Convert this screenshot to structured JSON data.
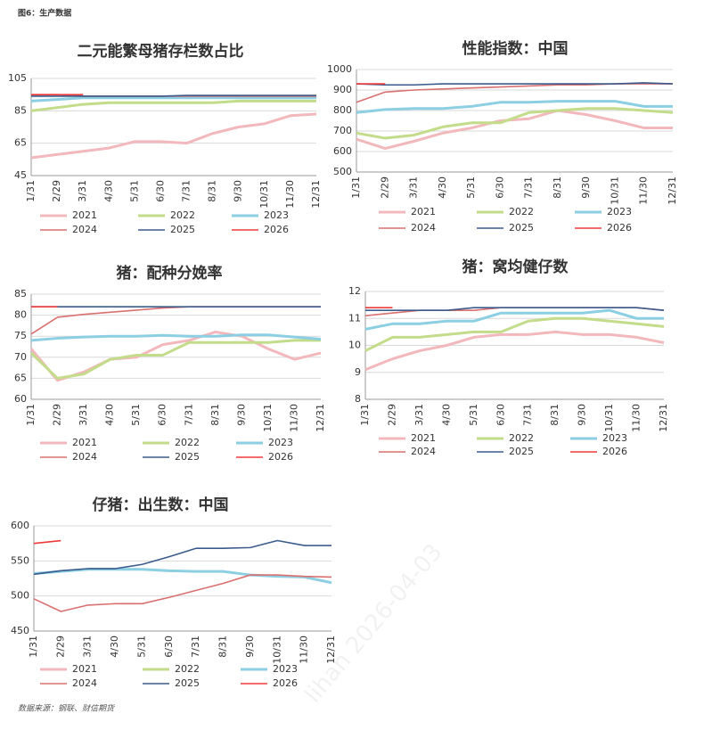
{
  "header": "图6：生产数据",
  "footer": "数据来源：钢联、财信期货",
  "watermark": "lihan 2026-04-03",
  "chart_data": [
    {
      "type": "line",
      "title": "二元能繁母猪存栏数占比",
      "categories": [
        "1/31",
        "2/29",
        "3/31",
        "4/30",
        "5/31",
        "6/30",
        "7/31",
        "8/31",
        "9/30",
        "10/31",
        "11/30",
        "12/31"
      ],
      "ylim": [
        45,
        105
      ],
      "yticks": [
        45,
        65,
        85,
        105
      ],
      "grid": true,
      "series": [
        {
          "name": "2021",
          "color": "#f2b8bc",
          "values": [
            56,
            58,
            60,
            62,
            66,
            66,
            65,
            71,
            75,
            77,
            82,
            83
          ]
        },
        {
          "name": "2022",
          "color": "#c3dc8a",
          "values": [
            85,
            87,
            89,
            90,
            90,
            90,
            90,
            90,
            91,
            91,
            91,
            91
          ]
        },
        {
          "name": "2023",
          "color": "#8ccfe3",
          "values": [
            91,
            92,
            93,
            93,
            93,
            93,
            93,
            93,
            93,
            93,
            93,
            93
          ]
        },
        {
          "name": "2024",
          "color": "#d9706f",
          "values": [
            95,
            95,
            94,
            94,
            94,
            94,
            94,
            94,
            94,
            94,
            94,
            94
          ]
        },
        {
          "name": "2025",
          "color": "#3b5b8c",
          "values": [
            94,
            94,
            94,
            94,
            94,
            94,
            94.5,
            94.5,
            94.5,
            94.5,
            94.5,
            94.5
          ]
        },
        {
          "name": "2026",
          "color": "#ef3a3a",
          "values": [
            95,
            95,
            95,
            null,
            null,
            null,
            null,
            null,
            null,
            null,
            null,
            null
          ]
        }
      ]
    },
    {
      "type": "line",
      "title": "性能指数：中国",
      "categories": [
        "1/31",
        "2/29",
        "3/31",
        "4/30",
        "5/31",
        "6/30",
        "7/31",
        "8/31",
        "9/30",
        "10/31",
        "11/30",
        "12/31"
      ],
      "ylim": [
        500,
        1000
      ],
      "yticks": [
        500,
        600,
        700,
        800,
        900,
        1000
      ],
      "grid": true,
      "series": [
        {
          "name": "2021",
          "color": "#f2b8bc",
          "values": [
            660,
            615,
            650,
            690,
            715,
            750,
            760,
            800,
            780,
            750,
            715,
            715
          ]
        },
        {
          "name": "2022",
          "color": "#c3dc8a",
          "values": [
            690,
            665,
            680,
            720,
            740,
            740,
            790,
            800,
            810,
            810,
            800,
            790
          ]
        },
        {
          "name": "2023",
          "color": "#8ccfe3",
          "values": [
            790,
            805,
            810,
            810,
            820,
            840,
            840,
            845,
            845,
            845,
            820,
            820
          ]
        },
        {
          "name": "2024",
          "color": "#d9706f",
          "values": [
            840,
            890,
            900,
            905,
            910,
            915,
            920,
            925,
            925,
            930,
            930,
            930
          ]
        },
        {
          "name": "2025",
          "color": "#3b5b8c",
          "values": [
            930,
            925,
            925,
            930,
            930,
            930,
            930,
            930,
            930,
            930,
            935,
            930
          ]
        },
        {
          "name": "2026",
          "color": "#ef3a3a",
          "values": [
            930,
            930,
            null,
            null,
            null,
            null,
            null,
            null,
            null,
            null,
            null,
            null
          ]
        }
      ]
    },
    {
      "type": "line",
      "title": "猪：配种分娩率",
      "categories": [
        "1/31",
        "2/29",
        "3/31",
        "4/30",
        "5/31",
        "6/30",
        "7/31",
        "8/31",
        "9/30",
        "10/31",
        "11/30",
        "12/31"
      ],
      "ylim": [
        60,
        85
      ],
      "yticks": [
        60,
        65,
        70,
        75,
        80,
        85
      ],
      "grid": true,
      "series": [
        {
          "name": "2021",
          "color": "#f2b8bc",
          "values": [
            72,
            64.5,
            66.5,
            69.5,
            70,
            73,
            74,
            76,
            75,
            72,
            69.5,
            71
          ]
        },
        {
          "name": "2022",
          "color": "#c3dc8a",
          "values": [
            71,
            65,
            66,
            69.5,
            70.5,
            70.5,
            73.5,
            73.5,
            73.5,
            73.5,
            74,
            74
          ]
        },
        {
          "name": "2023",
          "color": "#8ccfe3",
          "values": [
            74,
            74.5,
            74.8,
            75,
            75,
            75.2,
            75,
            75,
            75.3,
            75.3,
            74.8,
            74.3
          ]
        },
        {
          "name": "2024",
          "color": "#d9706f",
          "values": [
            75.5,
            79.5,
            80.2,
            80.7,
            81.2,
            81.7,
            82,
            82,
            82,
            82,
            82,
            82
          ]
        },
        {
          "name": "2025",
          "color": "#3b5b8c",
          "values": [
            82,
            82,
            82,
            82,
            82,
            82,
            82,
            82,
            82,
            82,
            82,
            82
          ]
        },
        {
          "name": "2026",
          "color": "#ef3a3a",
          "values": [
            82,
            82,
            null,
            null,
            null,
            null,
            null,
            null,
            null,
            null,
            null,
            null
          ]
        }
      ]
    },
    {
      "type": "line",
      "title": "猪：窝均健仔数",
      "categories": [
        "1/31",
        "2/29",
        "3/31",
        "4/30",
        "5/31",
        "6/30",
        "7/31",
        "8/31",
        "9/30",
        "10/31",
        "11/30",
        "12/31"
      ],
      "ylim": [
        8,
        12
      ],
      "yticks": [
        8,
        9,
        10,
        11,
        12
      ],
      "grid": true,
      "series": [
        {
          "name": "2021",
          "color": "#f2b8bc",
          "values": [
            9.1,
            9.5,
            9.8,
            10.0,
            10.3,
            10.4,
            10.4,
            10.5,
            10.4,
            10.4,
            10.3,
            10.1
          ]
        },
        {
          "name": "2022",
          "color": "#c3dc8a",
          "values": [
            9.8,
            10.3,
            10.3,
            10.4,
            10.5,
            10.5,
            10.9,
            11.0,
            11.0,
            10.9,
            10.8,
            10.7
          ]
        },
        {
          "name": "2023",
          "color": "#8ccfe3",
          "values": [
            10.6,
            10.8,
            10.8,
            10.9,
            10.9,
            11.2,
            11.2,
            11.2,
            11.2,
            11.3,
            11.0,
            11.0
          ]
        },
        {
          "name": "2024",
          "color": "#d9706f",
          "values": [
            11.1,
            11.2,
            11.3,
            11.3,
            11.3,
            11.4,
            11.4,
            11.4,
            11.4,
            11.4,
            11.4,
            11.3
          ]
        },
        {
          "name": "2025",
          "color": "#3b5b8c",
          "values": [
            11.3,
            11.3,
            11.3,
            11.3,
            11.4,
            11.4,
            11.4,
            11.4,
            11.4,
            11.4,
            11.4,
            11.3
          ]
        },
        {
          "name": "2026",
          "color": "#ef3a3a",
          "values": [
            11.4,
            11.4,
            null,
            null,
            null,
            null,
            null,
            null,
            null,
            null,
            null,
            null
          ]
        }
      ]
    },
    {
      "type": "line",
      "title": "仔猪：出生数：中国",
      "categories": [
        "1/31",
        "2/29",
        "3/31",
        "4/30",
        "5/31",
        "6/30",
        "7/31",
        "8/31",
        "9/30",
        "10/31",
        "11/30",
        "12/31"
      ],
      "ylim": [
        450,
        600
      ],
      "yticks": [
        450,
        500,
        550,
        600
      ],
      "grid": true,
      "series": [
        {
          "name": "2021",
          "color": "#f2b8bc",
          "values": [
            null,
            null,
            null,
            null,
            null,
            null,
            null,
            null,
            null,
            null,
            null,
            null
          ]
        },
        {
          "name": "2022",
          "color": "#c3dc8a",
          "values": [
            null,
            null,
            null,
            null,
            null,
            null,
            null,
            null,
            null,
            null,
            null,
            null
          ]
        },
        {
          "name": "2023",
          "color": "#8ccfe3",
          "values": [
            532,
            535,
            538,
            538,
            538,
            536,
            535,
            535,
            530,
            528,
            527,
            519
          ]
        },
        {
          "name": "2024",
          "color": "#d9706f",
          "values": [
            496,
            478,
            487,
            489,
            489,
            498,
            508,
            518,
            530,
            530,
            528,
            527
          ]
        },
        {
          "name": "2025",
          "color": "#3b5b8c",
          "values": [
            531,
            536,
            539,
            539,
            545,
            556,
            568,
            568,
            569,
            579,
            572,
            572
          ]
        },
        {
          "name": "2026",
          "color": "#ef3a3a",
          "values": [
            575,
            579,
            null,
            null,
            null,
            null,
            null,
            null,
            null,
            null,
            null,
            null
          ]
        }
      ]
    }
  ]
}
